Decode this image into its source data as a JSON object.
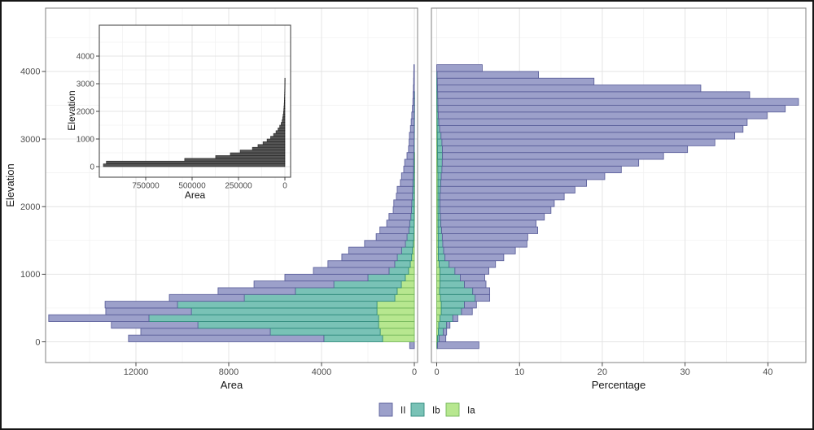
{
  "figure": {
    "background": "#ffffff",
    "outer_border_color": "#161616",
    "panel_border_color": "#8b8b8b",
    "inset_border_color": "#4a4a4a",
    "grid_major_color": "#e4e4e4",
    "grid_minor_color": "#f1f1f1",
    "tick_color": "#333333",
    "tick_label_color": "#4d4d4d",
    "axis_title_color": "#141414"
  },
  "series_colors": {
    "II": {
      "fill": "#9ca0ca",
      "stroke": "#5a5e9a"
    },
    "Ib": {
      "fill": "#79c2b6",
      "stroke": "#2f8a7c"
    },
    "Ia": {
      "fill": "#b7e78f",
      "stroke": "#74b65a"
    }
  },
  "legend": {
    "items": [
      {
        "label": "II",
        "series": "II"
      },
      {
        "label": "Ib",
        "series": "Ib"
      },
      {
        "label": "Ia",
        "series": "Ia"
      }
    ]
  },
  "chart_data": [
    {
      "id": "main-left",
      "type": "bar",
      "stacked": true,
      "orientation": "horizontal",
      "title": "",
      "xlabel": "Area",
      "ylabel": "Elevation",
      "x_reversed": true,
      "x_ticks": [
        12000,
        8000,
        4000,
        0
      ],
      "y_ticks": [
        0,
        1000,
        2000,
        3000,
        4000
      ],
      "xlim": [
        15900,
        0
      ],
      "ylim": [
        -300,
        4930
      ],
      "bin_width": 100,
      "series_order": [
        "Ia",
        "Ib",
        "II"
      ],
      "bins": [
        {
          "e": -50,
          "Ia": 0,
          "Ib": 0,
          "II": 200
        },
        {
          "e": 50,
          "Ia": 1370,
          "Ib": 2530,
          "II": 8420
        },
        {
          "e": 150,
          "Ia": 1470,
          "Ib": 4740,
          "II": 5580
        },
        {
          "e": 250,
          "Ia": 1540,
          "Ib": 7790,
          "II": 3730
        },
        {
          "e": 350,
          "Ia": 1540,
          "Ib": 9900,
          "II": 4320
        },
        {
          "e": 450,
          "Ia": 1610,
          "Ib": 8000,
          "II": 3690
        },
        {
          "e": 550,
          "Ia": 1610,
          "Ib": 8600,
          "II": 3120
        },
        {
          "e": 650,
          "Ia": 840,
          "Ib": 6490,
          "II": 3230
        },
        {
          "e": 750,
          "Ia": 740,
          "Ib": 4390,
          "II": 3330
        },
        {
          "e": 850,
          "Ia": 560,
          "Ib": 2910,
          "II": 3440
        },
        {
          "e": 950,
          "Ia": 390,
          "Ib": 1610,
          "II": 3580
        },
        {
          "e": 1050,
          "Ia": 250,
          "Ib": 840,
          "II": 3260
        },
        {
          "e": 1150,
          "Ia": 175,
          "Ib": 670,
          "II": 2880
        },
        {
          "e": 1250,
          "Ia": 115,
          "Ib": 620,
          "II": 2390
        },
        {
          "e": 1350,
          "Ia": 80,
          "Ib": 470,
          "II": 2280
        },
        {
          "e": 1450,
          "Ia": 45,
          "Ib": 340,
          "II": 1760
        },
        {
          "e": 1550,
          "Ia": 25,
          "Ib": 290,
          "II": 1330
        },
        {
          "e": 1650,
          "Ia": 15,
          "Ib": 220,
          "II": 1250
        },
        {
          "e": 1750,
          "Ia": 10,
          "Ib": 190,
          "II": 990
        },
        {
          "e": 1850,
          "Ia": 8,
          "Ib": 140,
          "II": 945
        },
        {
          "e": 1950,
          "Ia": 6,
          "Ib": 115,
          "II": 790
        },
        {
          "e": 2050,
          "Ia": 5,
          "Ib": 105,
          "II": 775
        },
        {
          "e": 2150,
          "Ia": 4,
          "Ib": 80,
          "II": 690
        },
        {
          "e": 2250,
          "Ia": 3,
          "Ib": 70,
          "II": 665
        },
        {
          "e": 2350,
          "Ia": 2,
          "Ib": 60,
          "II": 540
        },
        {
          "e": 2450,
          "Ia": 2,
          "Ib": 45,
          "II": 505
        },
        {
          "e": 2550,
          "Ia": 1,
          "Ib": 35,
          "II": 420
        },
        {
          "e": 2650,
          "Ia": 1,
          "Ib": 30,
          "II": 385
        },
        {
          "e": 2750,
          "Ia": 1,
          "Ib": 25,
          "II": 290
        },
        {
          "e": 2850,
          "Ia": 0,
          "Ib": 20,
          "II": 230
        },
        {
          "e": 2950,
          "Ia": 0,
          "Ib": 15,
          "II": 210
        },
        {
          "e": 3050,
          "Ia": 0,
          "Ib": 10,
          "II": 200
        },
        {
          "e": 3150,
          "Ia": 0,
          "Ib": 8,
          "II": 160
        },
        {
          "e": 3250,
          "Ia": 0,
          "Ib": 6,
          "II": 130
        },
        {
          "e": 3350,
          "Ia": 0,
          "Ib": 4,
          "II": 105
        },
        {
          "e": 3450,
          "Ia": 0,
          "Ib": 3,
          "II": 80
        },
        {
          "e": 3550,
          "Ia": 0,
          "Ib": 2,
          "II": 60
        },
        {
          "e": 3650,
          "Ia": 0,
          "Ib": 1,
          "II": 50
        },
        {
          "e": 3750,
          "Ia": 0,
          "Ib": 0,
          "II": 40
        },
        {
          "e": 3850,
          "Ia": 0,
          "Ib": 0,
          "II": 30
        },
        {
          "e": 3950,
          "Ia": 0,
          "Ib": 0,
          "II": 25
        },
        {
          "e": 4050,
          "Ia": 0,
          "Ib": 0,
          "II": 20
        }
      ]
    },
    {
      "id": "main-right",
      "type": "bar",
      "stacked": true,
      "orientation": "horizontal",
      "title": "",
      "xlabel": "Percentage",
      "ylabel": "Elevation",
      "x_reversed": false,
      "x_ticks": [
        0,
        10,
        20,
        30,
        40
      ],
      "y_ticks": [
        0,
        1000,
        2000,
        3000,
        4000
      ],
      "xlim": [
        0,
        44.6
      ],
      "ylim": [
        -300,
        4930
      ],
      "bin_width": 100,
      "series_order": [
        "Ia",
        "Ib",
        "II"
      ],
      "bins": [
        {
          "e": -50,
          "Ia": 0.05,
          "Ib": 0.05,
          "II": 5.0
        },
        {
          "e": 50,
          "Ia": 0.1,
          "Ib": 0.2,
          "II": 0.8
        },
        {
          "e": 150,
          "Ia": 0.2,
          "Ib": 0.6,
          "II": 0.4
        },
        {
          "e": 250,
          "Ia": 0.25,
          "Ib": 0.95,
          "II": 0.4
        },
        {
          "e": 350,
          "Ia": 0.4,
          "Ib": 1.55,
          "II": 0.6
        },
        {
          "e": 450,
          "Ia": 0.55,
          "Ib": 2.45,
          "II": 1.3
        },
        {
          "e": 550,
          "Ia": 0.55,
          "Ib": 2.8,
          "II": 1.45
        },
        {
          "e": 650,
          "Ia": 0.45,
          "Ib": 4.2,
          "II": 1.75
        },
        {
          "e": 750,
          "Ia": 0.35,
          "Ib": 4.0,
          "II": 2.05
        },
        {
          "e": 850,
          "Ia": 0.4,
          "Ib": 2.95,
          "II": 2.6
        },
        {
          "e": 950,
          "Ia": 0.4,
          "Ib": 2.45,
          "II": 2.95
        },
        {
          "e": 1050,
          "Ia": 0.4,
          "Ib": 1.8,
          "II": 4.1
        },
        {
          "e": 1150,
          "Ia": 0.3,
          "Ib": 1.2,
          "II": 5.6
        },
        {
          "e": 1250,
          "Ia": 0.2,
          "Ib": 0.8,
          "II": 7.1
        },
        {
          "e": 1350,
          "Ia": 0.19,
          "Ib": 0.65,
          "II": 8.66
        },
        {
          "e": 1450,
          "Ia": 0.18,
          "Ib": 0.55,
          "II": 10.17
        },
        {
          "e": 1550,
          "Ia": 0.18,
          "Ib": 0.5,
          "II": 10.32
        },
        {
          "e": 1650,
          "Ia": 0.17,
          "Ib": 0.42,
          "II": 11.61
        },
        {
          "e": 1750,
          "Ia": 0.16,
          "Ib": 0.34,
          "II": 11.5
        },
        {
          "e": 1850,
          "Ia": 0.16,
          "Ib": 0.3,
          "II": 12.54
        },
        {
          "e": 1950,
          "Ia": 0.15,
          "Ib": 0.26,
          "II": 13.39
        },
        {
          "e": 2050,
          "Ia": 0.15,
          "Ib": 0.25,
          "II": 13.8
        },
        {
          "e": 2150,
          "Ia": 0.15,
          "Ib": 0.25,
          "II": 15.0
        },
        {
          "e": 2250,
          "Ia": 0.15,
          "Ib": 0.3,
          "II": 16.25
        },
        {
          "e": 2350,
          "Ia": 0.15,
          "Ib": 0.35,
          "II": 17.6
        },
        {
          "e": 2450,
          "Ia": 0.15,
          "Ib": 0.4,
          "II": 19.75
        },
        {
          "e": 2550,
          "Ia": 0.13,
          "Ib": 0.5,
          "II": 21.67
        },
        {
          "e": 2650,
          "Ia": 0.12,
          "Ib": 0.55,
          "II": 23.73
        },
        {
          "e": 2750,
          "Ia": 0.1,
          "Ib": 0.6,
          "II": 26.7
        },
        {
          "e": 2850,
          "Ia": 0.09,
          "Ib": 0.6,
          "II": 29.61
        },
        {
          "e": 2950,
          "Ia": 0.08,
          "Ib": 0.55,
          "II": 32.97
        },
        {
          "e": 3050,
          "Ia": 0.07,
          "Ib": 0.45,
          "II": 35.48
        },
        {
          "e": 3150,
          "Ia": 0.06,
          "Ib": 0.3,
          "II": 36.64
        },
        {
          "e": 3250,
          "Ia": 0.05,
          "Ib": 0.2,
          "II": 37.25
        },
        {
          "e": 3350,
          "Ia": 0.04,
          "Ib": 0.15,
          "II": 39.71
        },
        {
          "e": 3450,
          "Ia": 0.03,
          "Ib": 0.13,
          "II": 41.94
        },
        {
          "e": 3550,
          "Ia": 0.02,
          "Ib": 0.12,
          "II": 43.56
        },
        {
          "e": 3650,
          "Ia": 0.02,
          "Ib": 0.1,
          "II": 37.68
        },
        {
          "e": 3750,
          "Ia": 0,
          "Ib": 0.1,
          "II": 31.8
        },
        {
          "e": 3850,
          "Ia": 0,
          "Ib": 0.08,
          "II": 18.92
        },
        {
          "e": 3950,
          "Ia": 0,
          "Ib": 0.05,
          "II": 12.25
        },
        {
          "e": 4050,
          "Ia": 0,
          "Ib": 0,
          "II": 5.5
        }
      ]
    },
    {
      "id": "inset-area",
      "type": "bar",
      "stacked": false,
      "orientation": "horizontal",
      "title": "",
      "xlabel": "Area",
      "ylabel": "Elevation",
      "x_reversed": true,
      "x_ticks": [
        750000,
        500000,
        250000,
        0
      ],
      "y_ticks": [
        0,
        1000,
        2000,
        3000,
        4000
      ],
      "xlim": [
        1000000,
        0
      ],
      "ylim": [
        -300,
        5000
      ],
      "bin_width": 100,
      "bar_fill": "#555555",
      "bar_stroke": "#222222",
      "bins": [
        {
          "e": 50,
          "v": 978000
        },
        {
          "e": 150,
          "v": 962000
        },
        {
          "e": 250,
          "v": 540000
        },
        {
          "e": 350,
          "v": 373000
        },
        {
          "e": 450,
          "v": 294000
        },
        {
          "e": 550,
          "v": 241000
        },
        {
          "e": 650,
          "v": 175000
        },
        {
          "e": 750,
          "v": 145000
        },
        {
          "e": 850,
          "v": 118000
        },
        {
          "e": 950,
          "v": 96000
        },
        {
          "e": 1050,
          "v": 77000
        },
        {
          "e": 1150,
          "v": 61000
        },
        {
          "e": 1250,
          "v": 48000
        },
        {
          "e": 1350,
          "v": 37000
        },
        {
          "e": 1450,
          "v": 28000
        },
        {
          "e": 1550,
          "v": 20000
        },
        {
          "e": 1650,
          "v": 15000
        },
        {
          "e": 1750,
          "v": 12000
        },
        {
          "e": 1850,
          "v": 9500
        },
        {
          "e": 1950,
          "v": 7500
        },
        {
          "e": 2050,
          "v": 6000
        },
        {
          "e": 2150,
          "v": 4800
        },
        {
          "e": 2250,
          "v": 3800
        },
        {
          "e": 2350,
          "v": 3000
        },
        {
          "e": 2450,
          "v": 2400
        },
        {
          "e": 2550,
          "v": 1900
        },
        {
          "e": 2650,
          "v": 1500
        },
        {
          "e": 2750,
          "v": 1200
        },
        {
          "e": 2850,
          "v": 900
        },
        {
          "e": 2950,
          "v": 700
        },
        {
          "e": 3050,
          "v": 550
        },
        {
          "e": 3150,
          "v": 420
        }
      ]
    }
  ]
}
